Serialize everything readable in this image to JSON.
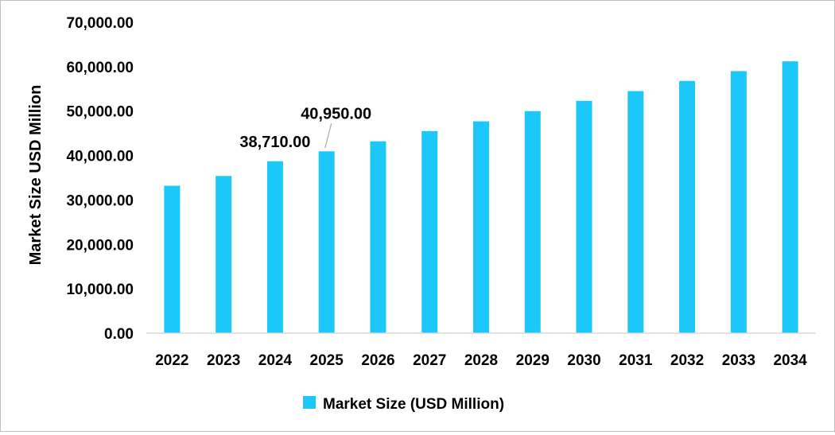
{
  "chart_data": {
    "type": "bar",
    "title": "",
    "xlabel": "",
    "ylabel": "Market Size USD Million",
    "categories": [
      "2022",
      "2023",
      "2024",
      "2025",
      "2026",
      "2027",
      "2028",
      "2029",
      "2030",
      "2031",
      "2032",
      "2033",
      "2034"
    ],
    "series": [
      {
        "name": "Market Size (USD Million)",
        "color": "#1CC7FA",
        "values": [
          33200,
          35400,
          38710,
          40950,
          43200,
          45500,
          47700,
          50000,
          52300,
          54500,
          56800,
          59000,
          61200
        ]
      }
    ],
    "ylim": [
      0,
      70000
    ],
    "yticks": [
      "0.00",
      "10,000.00",
      "20,000.00",
      "30,000.00",
      "40,000.00",
      "50,000.00",
      "60,000.00",
      "70,000.00"
    ],
    "ytick_values": [
      0,
      10000,
      20000,
      30000,
      40000,
      50000,
      60000,
      70000
    ],
    "data_labels": [
      {
        "category": "2024",
        "text": "38,710.00"
      },
      {
        "category": "2025",
        "text": "40,950.00"
      }
    ],
    "grid": false,
    "legend": "bottom-center"
  }
}
